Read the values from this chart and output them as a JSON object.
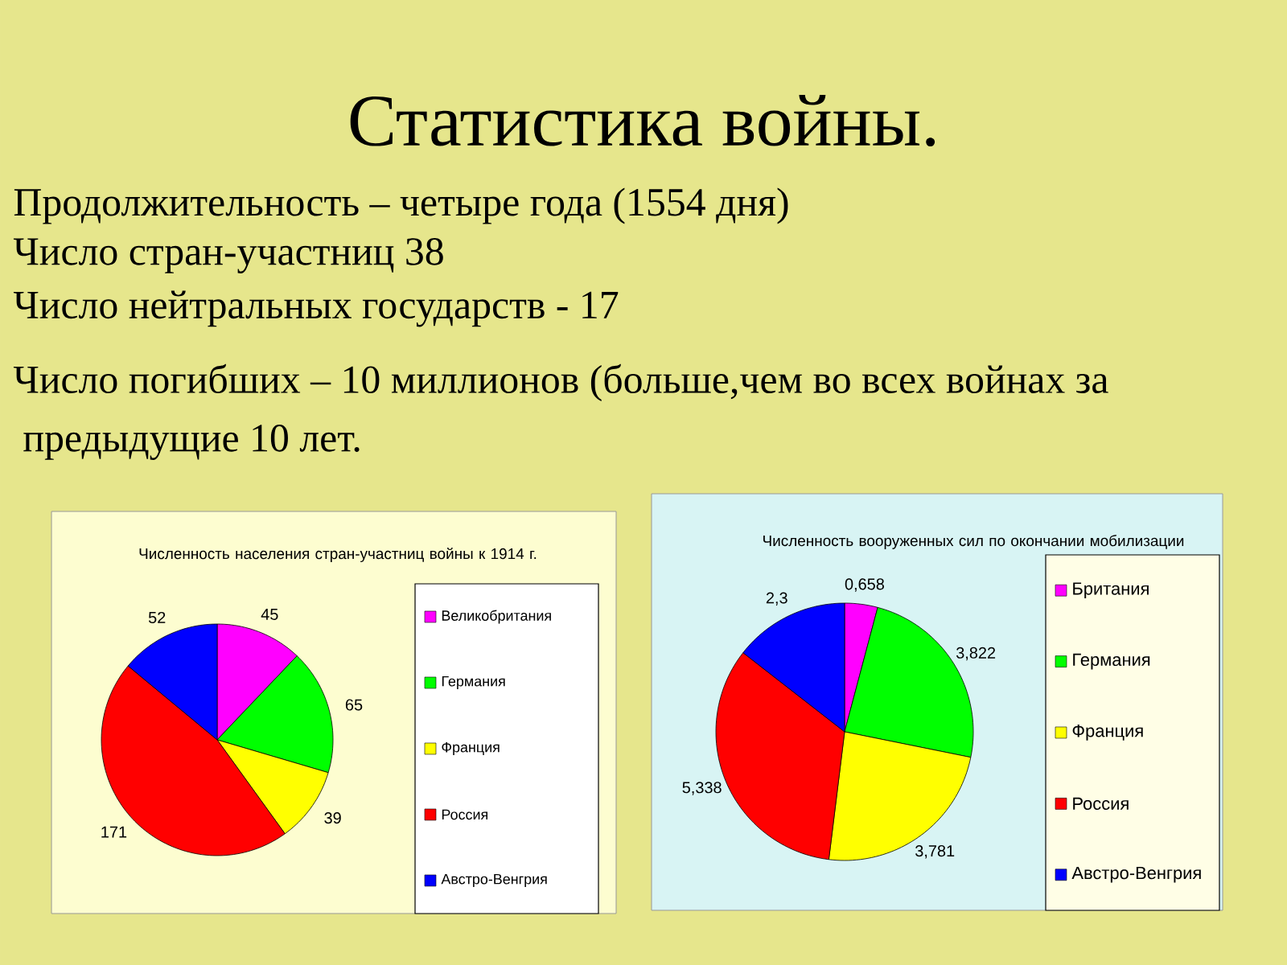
{
  "chart_data": [
    {
      "type": "other",
      "title": "Статистика войны.",
      "annotations": [
        "Продолжительность – четыре года (1554 дня)",
        "Число стран-участниц 38",
        "Число нейтральных государств - 17",
        "Число погибших – 10 миллионов (больше,чем во всех войнах за",
        "предыдущие 10 лет."
      ]
    },
    {
      "type": "pie",
      "title": "Численность населения стран-участниц войны к 1914 г.",
      "categories": [
        "Великобритания",
        "Германия",
        "Франция",
        "Россия",
        "Австро-Венгрия"
      ],
      "values": [
        45,
        65,
        39,
        171,
        52
      ],
      "colors": [
        "#ff00ff",
        "#00ff00",
        "#ffff00",
        "#ff0000",
        "#0000ff"
      ],
      "data_labels": true,
      "legend": "right"
    },
    {
      "type": "pie",
      "title": "Численность вооруженных сил по окончании мобилизации",
      "categories": [
        "Британия",
        "Германия",
        "Франция",
        "Россия",
        "Австро-Венгрия"
      ],
      "values": [
        0.658,
        3.822,
        3.781,
        5.338,
        2.3
      ],
      "colors": [
        "#ff00ff",
        "#00ff00",
        "#ffff00",
        "#ff0000",
        "#0000ff"
      ],
      "value_labels": [
        "0,658",
        "3,822",
        "3,781",
        "5,338",
        "2,3"
      ],
      "legend": "right"
    }
  ]
}
